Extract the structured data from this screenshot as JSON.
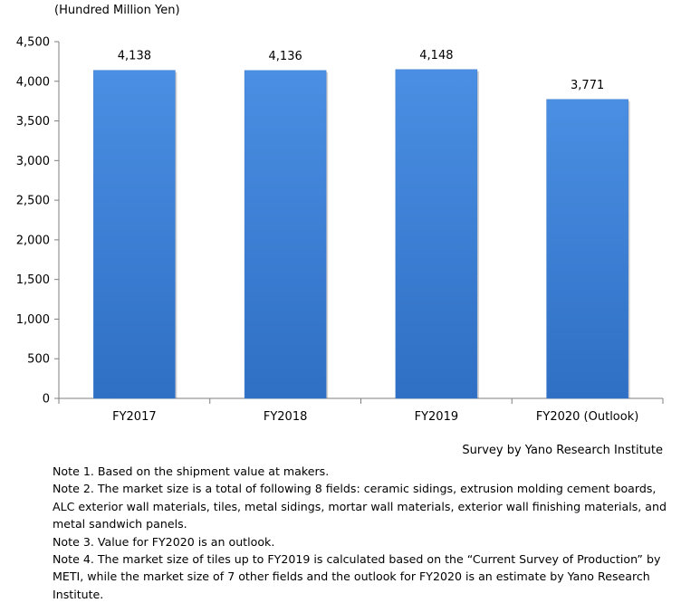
{
  "chart_data": {
    "type": "bar",
    "unit_label": "(Hundred Million Yen)",
    "categories": [
      "FY2017",
      "FY2018",
      "FY2019",
      "FY2020 (Outlook)"
    ],
    "values": [
      4138,
      4136,
      4148,
      3771
    ],
    "data_labels": [
      "4,138",
      "4,136",
      "4,148",
      "3,771"
    ],
    "ylim": [
      0,
      4500
    ],
    "y_ticks": [
      0,
      500,
      1000,
      1500,
      2000,
      2500,
      3000,
      3500,
      4000,
      4500
    ],
    "y_tick_labels": [
      "0",
      "500",
      "1,000",
      "1,500",
      "2,000",
      "2,500",
      "3,000",
      "3,500",
      "4,000",
      "4,500"
    ],
    "grid": false,
    "colors": {
      "bar_light": "#4a8fe3",
      "bar_dark": "#2f6fc4"
    }
  },
  "source": "Survey by Yano Research Institute",
  "notes": [
    "Note 1. Based on the shipment value at makers.",
    "Note 2. The market size is a total of following 8 fields: ceramic sidings, extrusion molding cement boards, ALC exterior wall materials, tiles, metal sidings, mortar wall materials, exterior wall finishing materials, and metal sandwich panels.",
    "Note 3. Value for FY2020 is an outlook.",
    "Note 4. The market size of tiles up to FY2019 is calculated based on the “Current Survey of Production” by METI, while the market size of 7 other fields and the outlook for FY2020 is an estimate by Yano Research Institute."
  ]
}
